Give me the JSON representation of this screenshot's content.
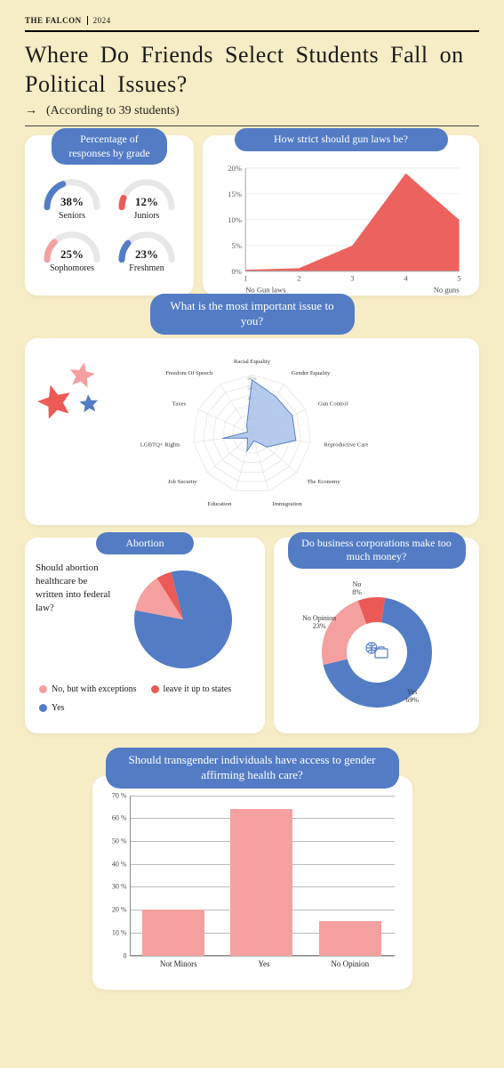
{
  "meta": {
    "publication": "THE FALCON",
    "year": "2024"
  },
  "title": "Where Do Friends Select Students Fall on Political Issues?",
  "subtitle": "(According to 39 students)",
  "colors": {
    "bg": "#f6ecc5",
    "card": "#ffffff",
    "blue": "#537cc5",
    "lightblue": "#a9c1e8",
    "red": "#eb5a56",
    "salmon": "#f4a0a0",
    "gaugeTrack": "#e7e7e7",
    "grid": "#bbbbbb",
    "axis": "#888888"
  },
  "grades": {
    "title": "Percentage of responses by grade",
    "items": [
      {
        "label": "Seniors",
        "pct": 38,
        "color": "#537cc5"
      },
      {
        "label": "Juniors",
        "pct": 12,
        "color": "#eb5a56"
      },
      {
        "label": "Sophomores",
        "pct": 25,
        "color": "#f4a0a0"
      },
      {
        "label": "Freshmen",
        "pct": 23,
        "color": "#537cc5"
      }
    ]
  },
  "gun": {
    "title": "How strict should gun laws be?",
    "xLabels": [
      "1",
      "2",
      "3",
      "4",
      "5"
    ],
    "xEndLabels": [
      "No Gun laws",
      "No guns"
    ],
    "yMax": 20,
    "yTicks": [
      0,
      5,
      10,
      15,
      20
    ],
    "values": [
      0.3,
      0.6,
      5,
      19,
      10
    ],
    "fill": "#eb5a56"
  },
  "radar": {
    "title": "What is the most important issue to you?",
    "axes": [
      "Racial Equality",
      "Gender Equality",
      "Gun Control",
      "Reproductive Care",
      "The Economy",
      "Immigration",
      "Education",
      "Job Security",
      "LGBTQ+ Rights",
      "Taxes",
      "Freedom Of Speech"
    ],
    "rings": [
      10,
      20,
      30,
      40,
      50,
      60
    ],
    "values": [
      55,
      45,
      45,
      45,
      20,
      7,
      18,
      6,
      30,
      5,
      10
    ],
    "fill": "#a9c1e8",
    "stroke": "#537cc5"
  },
  "abortion": {
    "title": "Abortion",
    "question": "Should abortion healthcare be written into federal law?",
    "slices": [
      {
        "label": "Yes",
        "value": 82,
        "color": "#537cc5"
      },
      {
        "label": "No, but with exceptions",
        "value": 13,
        "color": "#f4a0a0"
      },
      {
        "label": "leave it up to states",
        "value": 5,
        "color": "#eb5a56"
      }
    ]
  },
  "corp": {
    "title": "Do business corporations make too much money?",
    "slices": [
      {
        "label": "Yes",
        "value": 69,
        "color": "#537cc5"
      },
      {
        "label": "No Opinion",
        "value": 23,
        "color": "#f4a0a0"
      },
      {
        "label": "No",
        "value": 8,
        "color": "#eb5a56"
      }
    ]
  },
  "trans": {
    "title": "Should transgender individuals have access to gender affirming health care?",
    "yMax": 70,
    "yTicks": [
      0,
      10,
      20,
      30,
      40,
      50,
      60,
      70
    ],
    "bars": [
      {
        "label": "Not Minors",
        "value": 20
      },
      {
        "label": "Yes",
        "value": 64
      },
      {
        "label": "No Opinion",
        "value": 15
      }
    ],
    "barColor": "#f4a0a0"
  }
}
